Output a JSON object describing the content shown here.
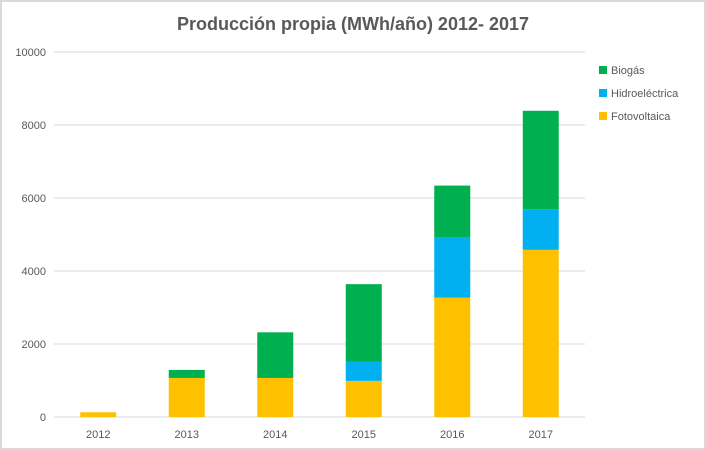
{
  "chart_data": {
    "type": "bar",
    "stacked": true,
    "title": "Producción propia (MWh/año) 2012- 2017",
    "categories": [
      "2012",
      "2013",
      "2014",
      "2015",
      "2016",
      "2017"
    ],
    "series": [
      {
        "name": "Fotovoltaica",
        "color": "#ffc000",
        "values": [
          130,
          1070,
          1070,
          990,
          3270,
          4580
        ]
      },
      {
        "name": "Hidroeléctrica",
        "color": "#00b0f0",
        "values": [
          0,
          0,
          0,
          520,
          1660,
          1110
        ]
      },
      {
        "name": "Biogás",
        "color": "#00b050",
        "values": [
          0,
          220,
          1250,
          2130,
          1410,
          2700
        ]
      }
    ],
    "ylim": [
      0,
      10000
    ],
    "yticks": [
      "0",
      "2000",
      "4000",
      "6000",
      "8000",
      "10000"
    ],
    "grid": true,
    "legend_position": "right",
    "legend_order": [
      "Biogás",
      "Hidroeléctrica",
      "Fotovoltaica"
    ]
  }
}
